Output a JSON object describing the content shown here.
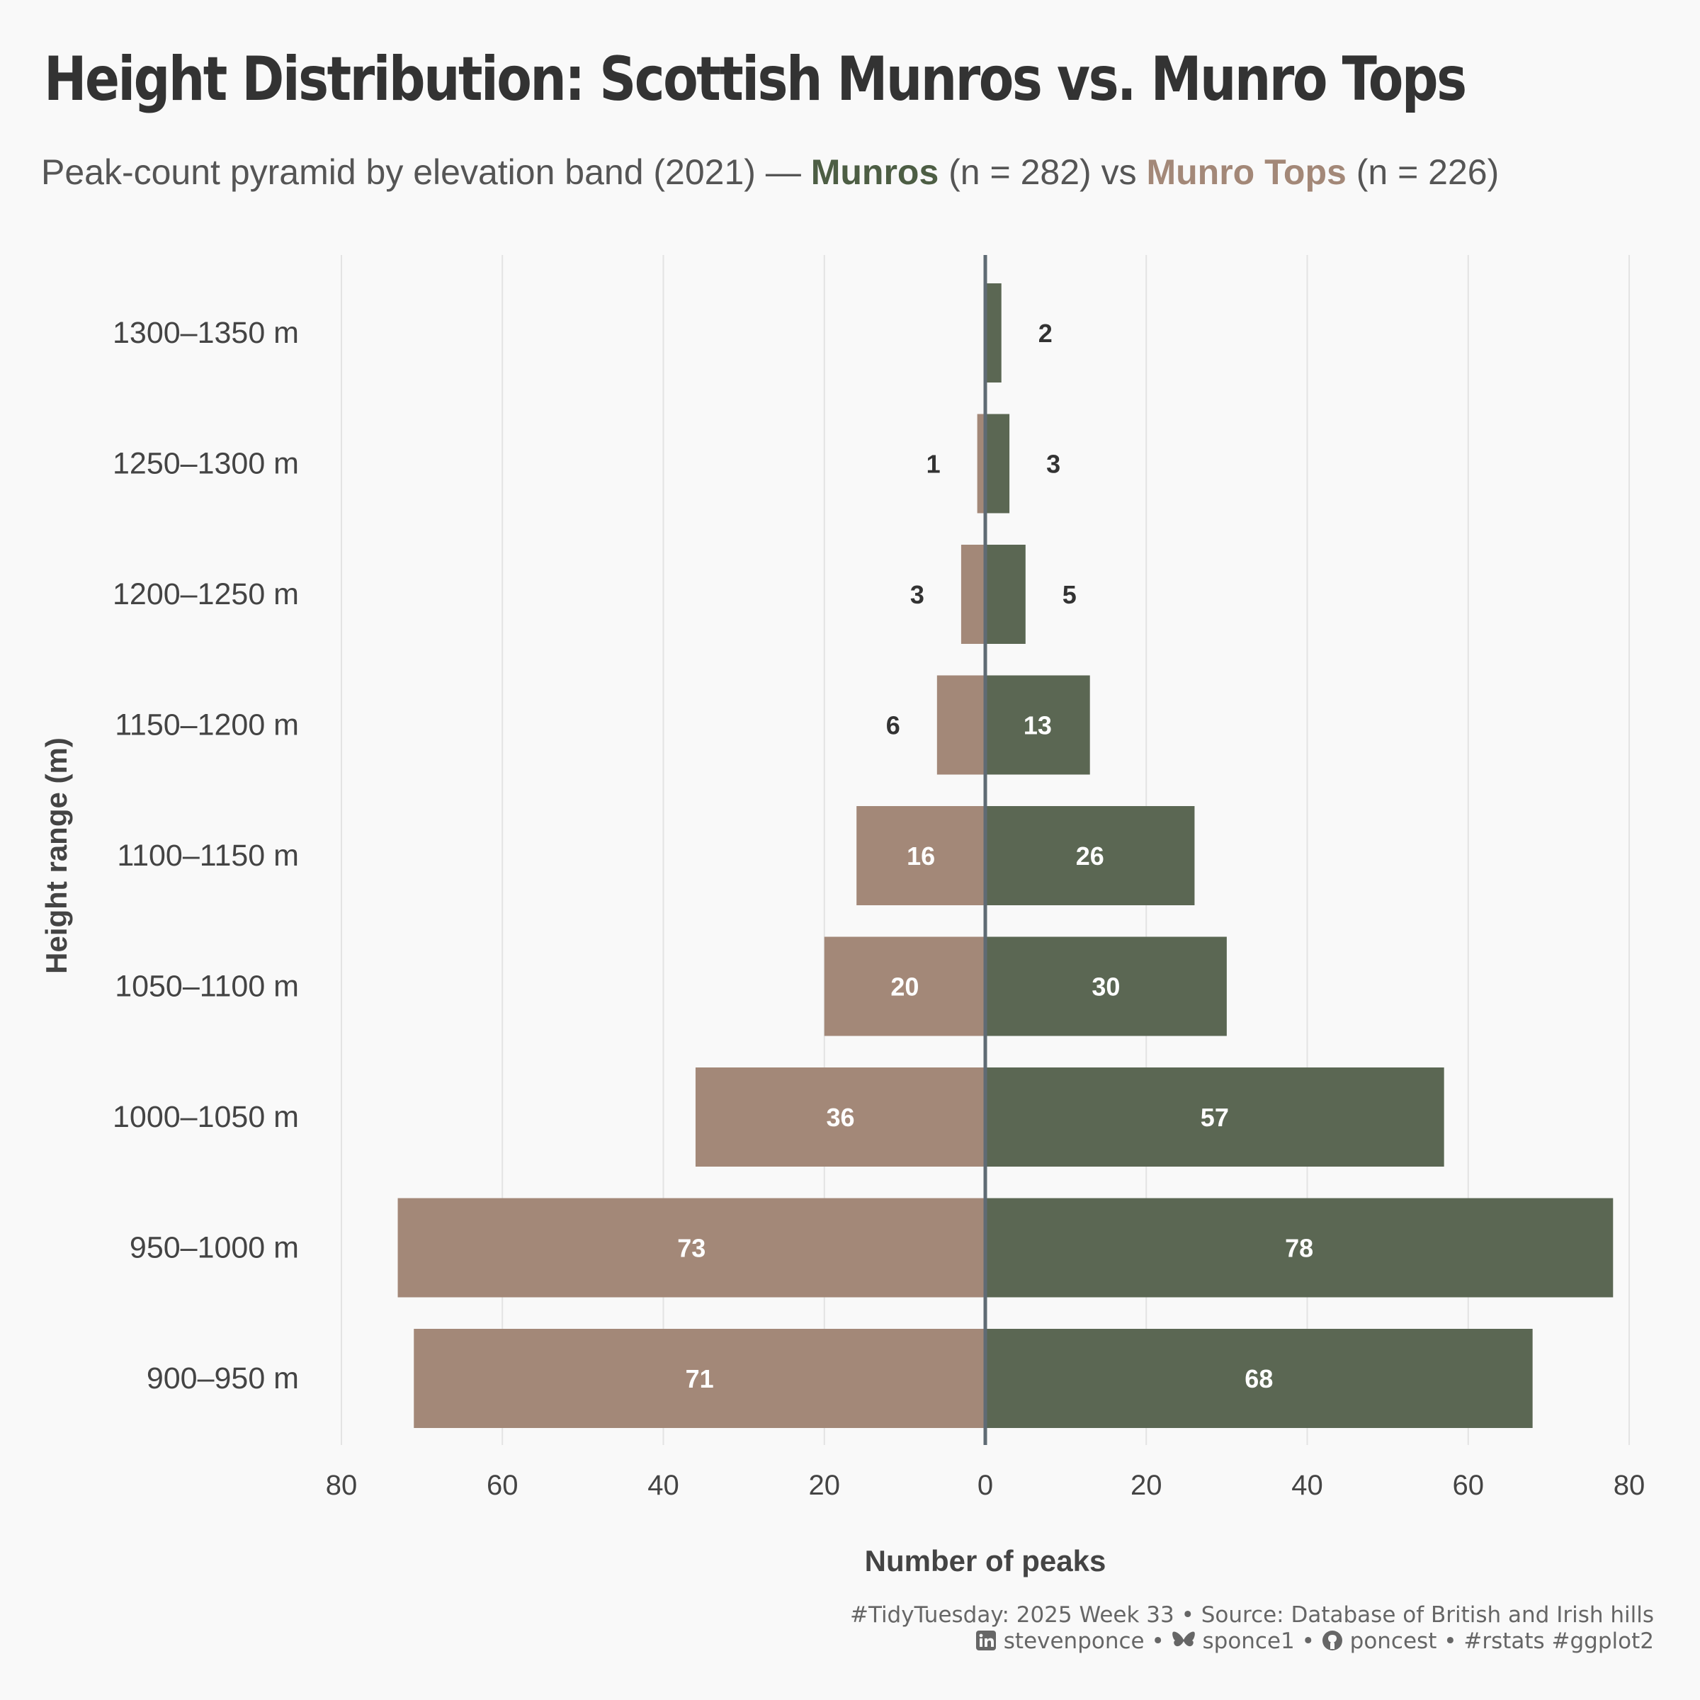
{
  "title": "Height Distribution: Scottish Munros vs. Munro Tops",
  "subtitle": {
    "lead": "Peak-count pyramid by elevation band (2021) — ",
    "munros_label": "Munros",
    "munros_n": " (n = 282) vs ",
    "tops_label": "Munro Tops",
    "tops_n": " (n = 226)"
  },
  "colors": {
    "munros": "#5b6753",
    "tops": "#a38878",
    "munros_text": "#4d5e44",
    "tops_text": "#a38878",
    "center_line": "#5f6b74",
    "grid": "#e3e3e3",
    "background": "#f9f9f9"
  },
  "chart_data": {
    "type": "bar",
    "orientation": "horizontal-pyramid",
    "xlabel": "Number of peaks",
    "ylabel": "Height range (m)",
    "xlim": [
      -80,
      80
    ],
    "xticks": [
      -80,
      -60,
      -40,
      -20,
      0,
      20,
      40,
      60,
      80
    ],
    "xtick_labels": [
      "80",
      "60",
      "40",
      "20",
      "0",
      "20",
      "40",
      "60",
      "80"
    ],
    "grid": "vertical",
    "categories": [
      "1300–1350 m",
      "1250–1300 m",
      "1200–1250 m",
      "1150–1200 m",
      "1100–1150 m",
      "1050–1100 m",
      "1000–1050 m",
      "950–1000 m",
      "900–950 m"
    ],
    "series": [
      {
        "name": "Munros",
        "side": "right",
        "values": [
          2,
          3,
          5,
          13,
          26,
          30,
          57,
          78,
          68
        ]
      },
      {
        "name": "Munro Tops",
        "side": "left",
        "values": [
          null,
          1,
          3,
          6,
          16,
          20,
          36,
          73,
          71
        ]
      }
    ]
  },
  "caption": {
    "line1": "#TidyTuesday: 2025 Week 33 • Source: Database of British and Irish hills",
    "linkedin_icon": "linkedin-icon",
    "linkedin": "stevenponce",
    "sep1": " • ",
    "bluesky_icon": "butterfly-icon",
    "bluesky": "sponce1",
    "sep2": " • ",
    "github_icon": "github-icon",
    "github": "poncest",
    "tags": " • #rstats #ggplot2"
  }
}
